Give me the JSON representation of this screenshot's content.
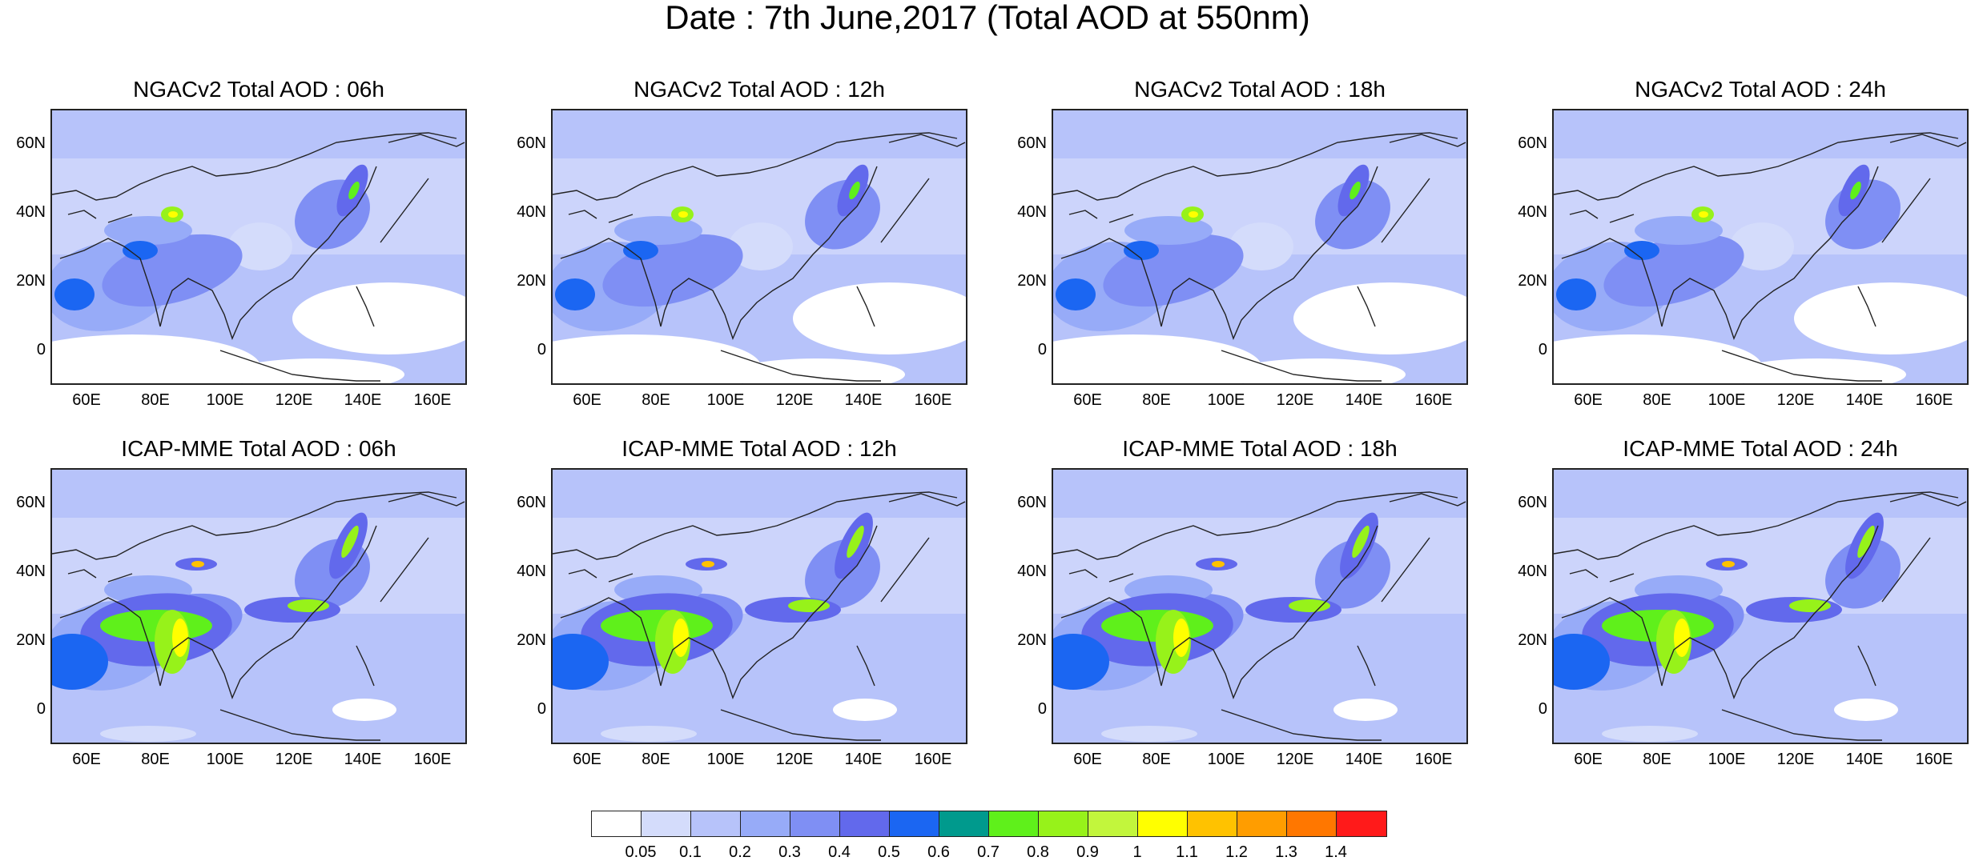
{
  "title": "Date : 7th June,2017 (Total AOD at 550nm)",
  "panels": [
    {
      "model": "NGACv2",
      "title": "NGACv2 Total AOD : 06h",
      "hour": "06h"
    },
    {
      "model": "NGACv2",
      "title": "NGACv2 Total AOD : 12h",
      "hour": "12h"
    },
    {
      "model": "NGACv2",
      "title": "NGACv2 Total AOD : 18h",
      "hour": "18h"
    },
    {
      "model": "NGACv2",
      "title": "NGACv2 Total AOD : 24h",
      "hour": "24h"
    },
    {
      "model": "ICAP-MME",
      "title": "ICAP-MME Total AOD : 06h",
      "hour": "06h"
    },
    {
      "model": "ICAP-MME",
      "title": "ICAP-MME Total AOD : 12h",
      "hour": "12h"
    },
    {
      "model": "ICAP-MME",
      "title": "ICAP-MME Total AOD : 18h",
      "hour": "18h"
    },
    {
      "model": "ICAP-MME",
      "title": "ICAP-MME Total AOD : 24h",
      "hour": "24h"
    }
  ],
  "lat_labels": [
    "60N",
    "40N",
    "20N",
    "0"
  ],
  "lon_labels": [
    "60E",
    "80E",
    "100E",
    "120E",
    "140E",
    "160E"
  ],
  "colorbar": {
    "labels": [
      "0.05",
      "0.1",
      "0.2",
      "0.3",
      "0.4",
      "0.5",
      "0.6",
      "0.7",
      "0.8",
      "0.9",
      "1",
      "1.1",
      "1.2",
      "1.3",
      "1.4"
    ],
    "colors": [
      "#ffffff",
      "#d4dcfb",
      "#b7c3fa",
      "#97abf8",
      "#7f8ff4",
      "#6269ec",
      "#1b66f2",
      "#009a8d",
      "#5ff01b",
      "#97f21a",
      "#c2f63c",
      "#ffff00",
      "#ffc200",
      "#ff9d00",
      "#ff7700",
      "#ff1a1a"
    ]
  }
}
